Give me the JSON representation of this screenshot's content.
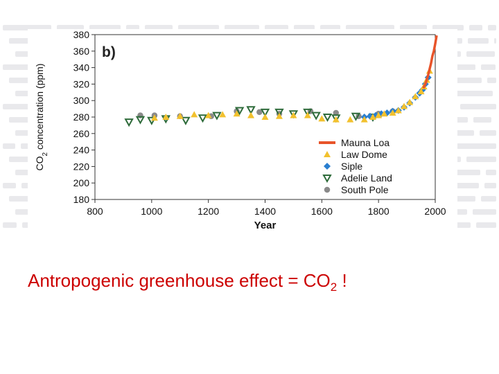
{
  "caption": {
    "text": "Antropogenic greenhouse effect = CO",
    "subscript": "2",
    "suffix": " !"
  },
  "colors": {
    "caption": "#cc0000",
    "mauna_loa": "#e8542a",
    "law_dome": "#f2c12e",
    "adelie_land": "#2e6b3a",
    "siple": "#2a7fd0",
    "south_pole": "#8a8a8a"
  },
  "chart_data": {
    "type": "scatter",
    "panel_label": "b)",
    "xlabel": "Year",
    "ylabel_main": "CO",
    "ylabel_sub": "2",
    "ylabel_rest": " concentration (ppm)",
    "xlim": [
      800,
      2000
    ],
    "ylim": [
      180,
      380
    ],
    "xticks": [
      800,
      1000,
      1200,
      1400,
      1600,
      1800,
      2000
    ],
    "yticks": [
      180,
      200,
      220,
      240,
      260,
      280,
      300,
      320,
      340,
      360,
      380
    ],
    "legend_position": "bottom-right",
    "series": [
      {
        "name": "Mauna Loa",
        "marker": "line",
        "x": [
          1958,
          1965,
          1970,
          1975,
          1980,
          1985,
          1990,
          1995,
          2000,
          2005
        ],
        "y": [
          315,
          320,
          325,
          331,
          338,
          345,
          354,
          360,
          369,
          379
        ]
      },
      {
        "name": "Law Dome",
        "marker": "triangle-up",
        "x": [
          1010,
          1050,
          1100,
          1150,
          1200,
          1250,
          1300,
          1350,
          1400,
          1450,
          1500,
          1550,
          1600,
          1650,
          1700,
          1750,
          1780,
          1800,
          1820,
          1850,
          1870,
          1890,
          1910,
          1930,
          1950,
          1960,
          1970,
          1980
        ],
        "y": [
          279,
          280,
          281,
          283,
          282,
          283,
          284,
          282,
          280,
          281,
          282,
          282,
          278,
          277,
          277,
          277,
          280,
          282,
          284,
          285,
          288,
          293,
          298,
          305,
          311,
          317,
          325,
          336
        ]
      },
      {
        "name": "Adelie Land",
        "marker": "triangle-down",
        "x": [
          920,
          960,
          1000,
          1050,
          1120,
          1180,
          1230,
          1310,
          1350,
          1400,
          1450,
          1500,
          1550,
          1580,
          1620,
          1650,
          1720,
          1780
        ],
        "y": [
          274,
          277,
          276,
          278,
          276,
          279,
          282,
          288,
          289,
          286,
          286,
          284,
          286,
          282,
          280,
          279,
          281,
          280
        ]
      },
      {
        "name": "Siple",
        "marker": "diamond",
        "x": [
          1750,
          1770,
          1790,
          1810,
          1830,
          1850,
          1870,
          1890,
          1910,
          1930,
          1945,
          1955,
          1965,
          1975
        ],
        "y": [
          280,
          281,
          282,
          284,
          285,
          287,
          288,
          292,
          297,
          304,
          309,
          313,
          320,
          328
        ]
      },
      {
        "name": "South Pole",
        "marker": "circle",
        "x": [
          960,
          1010,
          1100,
          1210,
          1300,
          1380,
          1450,
          1560,
          1650,
          1730,
          1800,
          1850
        ],
        "y": [
          282,
          282,
          281,
          281,
          287,
          286,
          284,
          287,
          285,
          281,
          284,
          287
        ]
      }
    ]
  }
}
